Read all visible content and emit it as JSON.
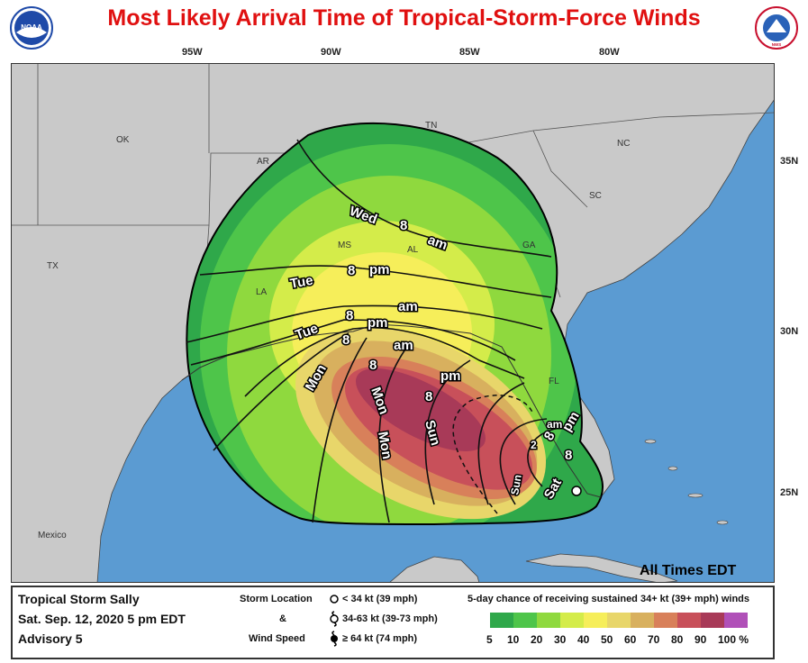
{
  "title": "Most Likely Arrival Time of Tropical-Storm-Force Winds",
  "longitudes": [
    "95W",
    "90W",
    "85W",
    "80W"
  ],
  "latitudes": [
    "35N",
    "30N",
    "25N"
  ],
  "state_labels": [
    "OK",
    "AR",
    "TN",
    "NC",
    "SC",
    "GA",
    "MS",
    "AL",
    "TX",
    "LA",
    "FL"
  ],
  "country_labels": [
    "Mexico"
  ],
  "contour_labels": [
    "Wed",
    "8",
    "am",
    "Tue",
    "8",
    "pm",
    "Tue",
    "8",
    "am",
    "8",
    "pm",
    "Mon",
    "8",
    "am",
    "Mon",
    "8",
    "pm",
    "Mon",
    "Sun",
    "8",
    "pm",
    "am",
    "2",
    "Sun",
    "Sat",
    "8"
  ],
  "all_times": "All Times EDT",
  "storm": {
    "name": "Tropical Storm Sally",
    "date": "Sat. Sep. 12, 2020  5 pm EDT",
    "advisory": "Advisory 5"
  },
  "legend": {
    "storm_location": "Storm Location",
    "and": "&",
    "wind_speed": "Wind Speed",
    "items": [
      "< 34 kt (39 mph)",
      "34-63 kt (39-73 mph)",
      "≥ 64 kt (74 mph)"
    ]
  },
  "scale": {
    "title": "5-day chance of receiving sustained 34+ kt (39+ mph) winds",
    "ticks": [
      "5",
      "10",
      "20",
      "30",
      "40",
      "50",
      "60",
      "70",
      "80",
      "90",
      "100 %"
    ],
    "colors": [
      "#2fa84a",
      "#4ec54a",
      "#8fd93e",
      "#d4ec4a",
      "#f6ee5a",
      "#e8d66a",
      "#d8b05e",
      "#d8805a",
      "#c8505a",
      "#a83a58",
      "#b050b8"
    ]
  },
  "logos": {
    "left": "NOAA",
    "right": "NATIONAL WEATHER SERVICE"
  },
  "colors": {
    "water": "#5b9bd2",
    "land": "#c9c9c9",
    "title": "#e01010"
  }
}
